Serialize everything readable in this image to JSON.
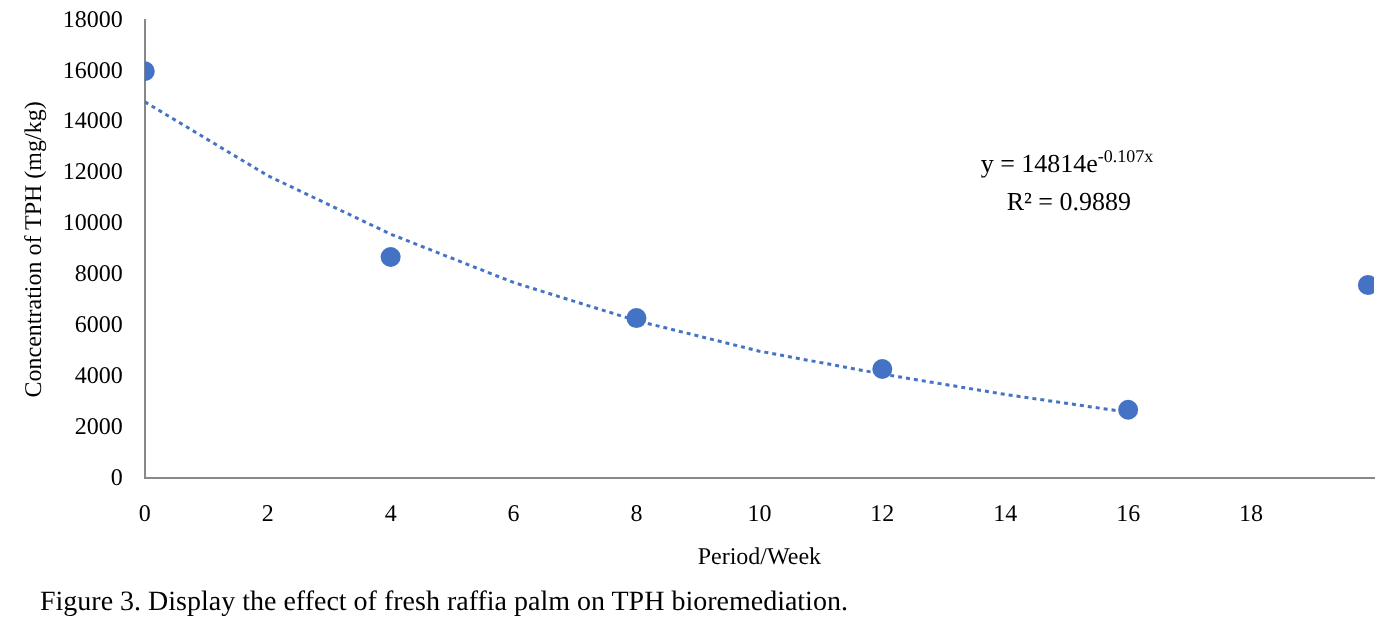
{
  "chart_data": {
    "type": "scatter",
    "xlabel": "Period/Week",
    "ylabel": "Concentration of TPH (mg/kg)",
    "series": [
      {
        "color": "#4472c4",
        "x": [
          0,
          4,
          8,
          12,
          16,
          19.9
        ],
        "values": [
          16000,
          8700,
          6300,
          4300,
          2700,
          7600
        ],
        "marker": "circle"
      },
      {
        "type": "line",
        "color": "#4472c4",
        "line_style": "dotted",
        "marker": "none",
        "x": [
          0,
          2,
          4,
          6,
          8,
          10,
          12,
          14,
          16
        ],
        "values": [
          14800,
          11900,
          9600,
          7700,
          6200,
          5000,
          4100,
          3300,
          2600
        ]
      }
    ],
    "xlim": [
      0,
      20
    ],
    "xticks": [
      0,
      2,
      4,
      6,
      8,
      10,
      12,
      14,
      16,
      18
    ],
    "ylim": [
      0,
      18000
    ],
    "yticks": [
      0,
      2000,
      4000,
      6000,
      8000,
      10000,
      12000,
      14000,
      16000,
      18000
    ],
    "grid": false,
    "legend": false,
    "annotations": [
      "y = 14814e$^{-0.107x}$",
      "R² = 0.9889",
      "Figure 3. Display the effect of fresh raffia palm on TPH bioremediation."
    ]
  }
}
